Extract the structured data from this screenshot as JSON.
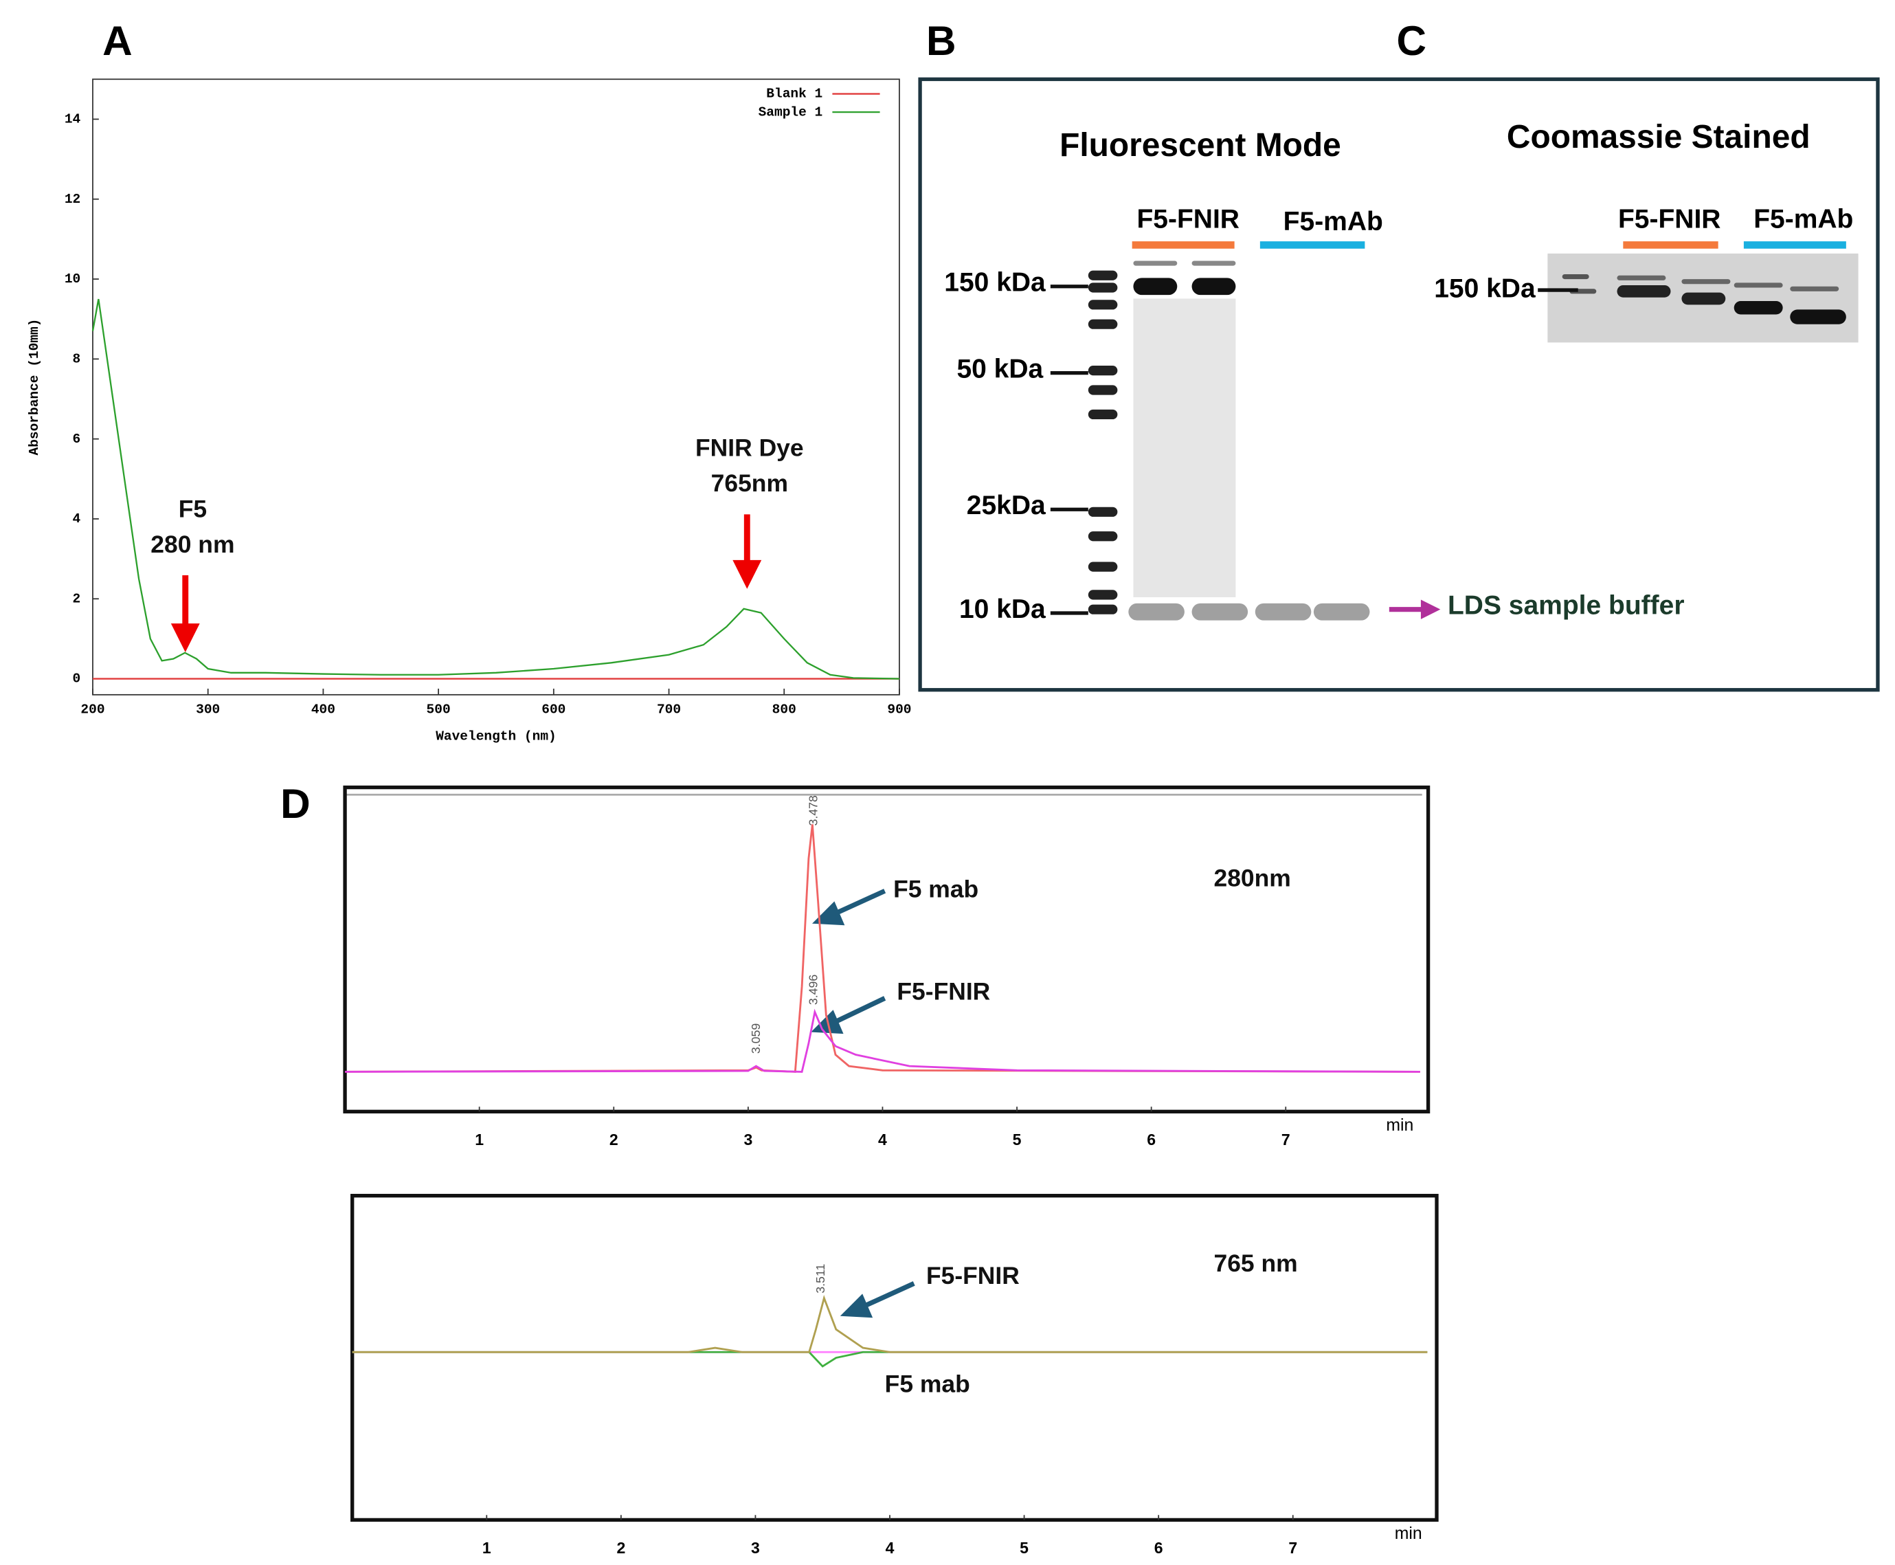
{
  "chart_data": [
    {
      "type": "line",
      "panel_label": "A",
      "xlabel": "Wavelength (nm)",
      "ylabel": "Absorbance (10mm)",
      "x": [
        200,
        205,
        210,
        220,
        230,
        240,
        250,
        260,
        270,
        280,
        290,
        300,
        320,
        350,
        400,
        450,
        500,
        550,
        600,
        650,
        700,
        730,
        750,
        765,
        780,
        800,
        820,
        840,
        860,
        900
      ],
      "series": [
        {
          "name": "Blank 1",
          "color": "#e03a3a",
          "values": [
            0,
            0,
            0,
            0,
            0,
            0,
            0,
            0,
            0,
            0,
            0,
            0,
            0,
            0,
            0,
            0,
            0,
            0,
            0,
            0,
            0,
            0,
            0,
            0,
            0,
            0,
            0,
            0,
            0,
            0
          ]
        },
        {
          "name": "Sample 1",
          "color": "#2ca02c",
          "values": [
            8.7,
            9.5,
            8.5,
            6.5,
            4.5,
            2.5,
            1.0,
            0.45,
            0.5,
            0.65,
            0.5,
            0.25,
            0.15,
            0.15,
            0.12,
            0.1,
            0.1,
            0.15,
            0.25,
            0.4,
            0.6,
            0.85,
            1.3,
            1.75,
            1.65,
            1.0,
            0.4,
            0.1,
            0.02,
            0.0
          ]
        }
      ],
      "xlim": [
        200,
        900
      ],
      "ylim": [
        -0.4,
        15
      ],
      "xticks": [
        200,
        300,
        400,
        500,
        600,
        700,
        800,
        900
      ],
      "yticks": [
        0,
        2,
        4,
        6,
        8,
        10,
        12,
        14
      ],
      "legend": "upper right",
      "annotations": [
        "F5",
        "280 nm",
        "FNIR Dye",
        "765nm"
      ]
    },
    {
      "type": "line",
      "panel_label": "D",
      "xlabel": "min",
      "xlim": [
        0,
        8.06
      ],
      "ylim": [
        -14,
        100
      ],
      "xticks": [
        1,
        2,
        3,
        4,
        5,
        6,
        7
      ],
      "series": [
        {
          "color": "#f06464",
          "x": [
            0,
            3.0,
            3.06,
            3.1,
            3.35,
            3.4,
            3.45,
            3.478,
            3.52,
            3.58,
            3.65,
            3.75,
            4.0,
            8.0
          ],
          "values": [
            0,
            0.5,
            1.5,
            0.5,
            0,
            30,
            75,
            87,
            60,
            20,
            6,
            2,
            0.5,
            0
          ]
        },
        {
          "color": "#e040e0",
          "x": [
            0,
            3.0,
            3.059,
            3.12,
            3.4,
            3.45,
            3.496,
            3.55,
            3.65,
            3.8,
            4.2,
            5,
            8
          ],
          "values": [
            0,
            0.3,
            2,
            0.3,
            0,
            10,
            21,
            15,
            9,
            6,
            2,
            0.5,
            0
          ]
        }
      ],
      "annotations": [
        "F5 mab",
        "F5-FNIR",
        "280nm"
      ],
      "peak_labels": [
        "3.478",
        "3.496",
        "3.059"
      ]
    },
    {
      "type": "line",
      "xlabel": "min",
      "xlim": [
        0,
        8.07
      ],
      "ylim": [
        -59,
        55
      ],
      "xticks": [
        1,
        2,
        3,
        4,
        5,
        6,
        7
      ],
      "series": [
        {
          "color": "#ff80ff",
          "x": [
            0,
            8
          ],
          "values": [
            0,
            0
          ]
        },
        {
          "color": "#40b040",
          "x": [
            0,
            3.4,
            3.5,
            3.6,
            3.8,
            8
          ],
          "values": [
            0,
            0,
            -5,
            -2,
            0,
            0
          ]
        },
        {
          "color": "#b0a050",
          "x": [
            0,
            2.5,
            2.7,
            2.9,
            3.4,
            3.45,
            3.511,
            3.6,
            3.8,
            4.0,
            8
          ],
          "values": [
            0,
            0,
            1.5,
            0,
            0,
            8,
            19,
            8,
            1.5,
            0,
            0
          ]
        }
      ],
      "annotations": [
        "F5-FNIR",
        "765 nm",
        "F5 mab"
      ],
      "peak_labels": [
        "3.511"
      ]
    }
  ],
  "gels": {
    "labels": [
      "B",
      "C"
    ],
    "fluorescent": {
      "title": "Fluorescent Mode",
      "lanes": [
        "F5-FNIR",
        "F5-mAb"
      ],
      "markers": [
        "150 kDa",
        "50 kDa",
        "25kDa",
        "10 kDa"
      ],
      "note": "LDS sample buffer"
    },
    "coomassie": {
      "title": "Coomassie Stained",
      "lanes": [
        "F5-FNIR",
        "F5-mAb"
      ],
      "markers": [
        "150 kDa"
      ]
    }
  }
}
